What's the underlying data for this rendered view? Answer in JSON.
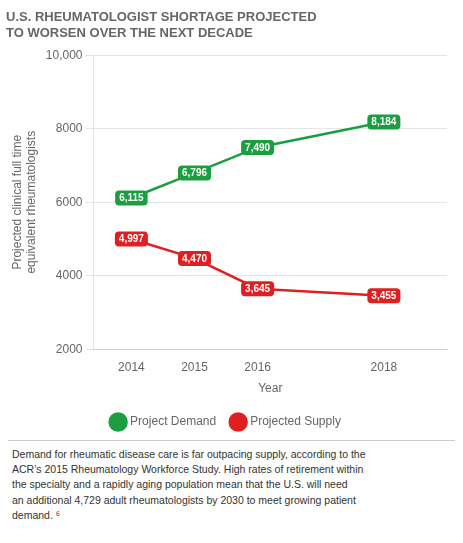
{
  "chart_data": {
    "type": "line",
    "title": "U.S. RHEUMATOLOGIST SHORTAGE PROJECTED\nTO WORSEN OVER THE NEXT DECADE",
    "xlabel": "Year",
    "ylabel": "Projected clinical full time\nequivalent rheumatologists",
    "x": [
      2014,
      2015,
      2016,
      2018
    ],
    "series": [
      {
        "name": "Project Demand",
        "color": "#1a9e3f",
        "values": [
          6115,
          6796,
          7490,
          8184
        ],
        "value_labels": [
          "6,115",
          "6,796",
          "7,490",
          "8,184"
        ]
      },
      {
        "name": "Projected Supply",
        "color": "#e02020",
        "values": [
          4997,
          4470,
          3645,
          3455
        ],
        "value_labels": [
          "4,997",
          "4,470",
          "3,645",
          "3,455"
        ]
      }
    ],
    "xlim": [
      2013.4,
      2019.0
    ],
    "xticks": [
      2014,
      2015,
      2016,
      2018
    ],
    "ylim": [
      2000,
      10000
    ],
    "yticks": [
      2000,
      4000,
      6000,
      8000,
      {
        "value": 10000,
        "label": "10,000"
      }
    ],
    "grid": "y",
    "legend": "bottom",
    "data_labels": true,
    "annotations": [
      "Demand for rheumatic disease care is far outpacing supply, according to the\nACR’s 2015 Rheumatology Workforce Study. High rates of retirement within\nthe specialty and a rapidly aging population mean that the U.S. will need\nan additional 4,729 adult rheumatologists by 2030 to meet growing patient\ndemand. ⁶"
    ]
  }
}
